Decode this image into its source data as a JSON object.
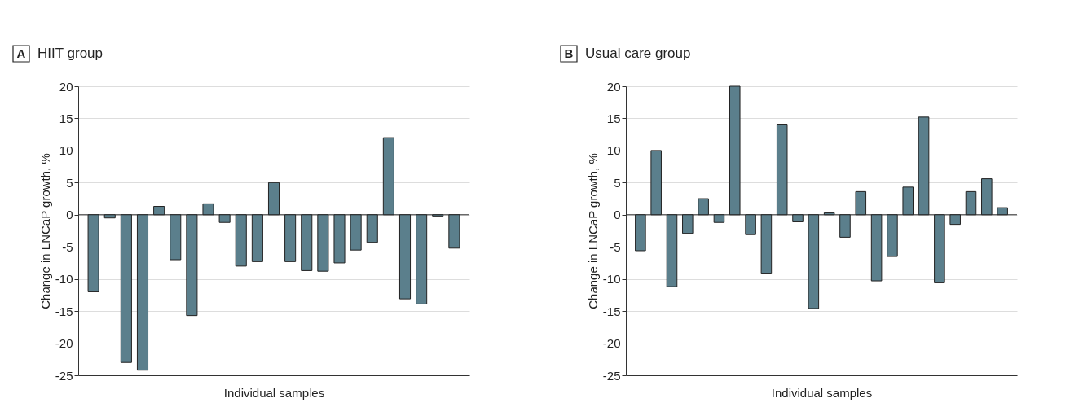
{
  "chart_data": [
    {
      "type": "bar",
      "title": "HIIT group",
      "annotations": [
        "A"
      ],
      "xlabel": "Individual samples",
      "ylabel": "Change in LNCaP growth, %",
      "categories": [
        null,
        null,
        null,
        null,
        null,
        null,
        null,
        null,
        null,
        null,
        null,
        null,
        null,
        null,
        null,
        null,
        null,
        null,
        null,
        null,
        null,
        null,
        null
      ],
      "series": [
        {
          "color": "#5b7f8c",
          "values": [
            -12,
            -0.5,
            -23,
            -24.2,
            1.3,
            -7,
            -15.7,
            1.7,
            -1.2,
            -8,
            -7.3,
            5,
            -7.3,
            -8.7,
            -8.8,
            -7.5,
            -5.5,
            -4.3,
            12,
            -13.1,
            -13.9,
            -0.2,
            -5.2
          ]
        }
      ],
      "ylim": [
        -25,
        20
      ],
      "yticks": [
        -25,
        -20,
        -15,
        -10,
        -5,
        0,
        5,
        10,
        15,
        20
      ],
      "grid": "y",
      "tick_labels": "y"
    },
    {
      "type": "bar",
      "title": "Usual care group",
      "annotations": [
        "B"
      ],
      "xlabel": "Individual samples",
      "ylabel": "Change in LNCaP growth, %",
      "categories": [
        null,
        null,
        null,
        null,
        null,
        null,
        null,
        null,
        null,
        null,
        null,
        null,
        null,
        null,
        null,
        null,
        null,
        null,
        null,
        null,
        null,
        null,
        null,
        null
      ],
      "series": [
        {
          "color": "#5b7f8c",
          "values": [
            -5.6,
            10,
            -11.2,
            -2.9,
            2.5,
            -1.2,
            20,
            -3.1,
            -9.1,
            14.1,
            -1.1,
            -14.6,
            0.3,
            -3.5,
            3.6,
            -10.3,
            -6.5,
            4.3,
            15.2,
            -10.6,
            -1.5,
            3.6,
            5.6,
            1.1
          ]
        }
      ],
      "ylim": [
        -25,
        20
      ],
      "yticks": [
        -25,
        -20,
        -15,
        -10,
        -5,
        0,
        5,
        10,
        15,
        20
      ],
      "grid": "y",
      "tick_labels": "y"
    }
  ]
}
